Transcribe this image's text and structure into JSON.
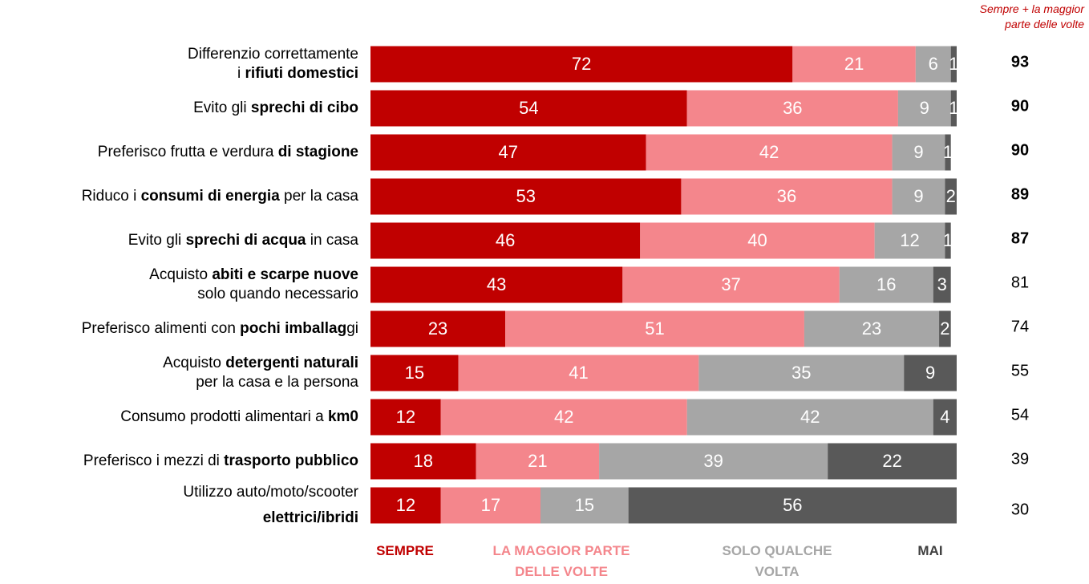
{
  "chart_data": {
    "type": "stacked-bar-horizontal",
    "categories": [
      [
        [
          {
            "text": "Differenzio correttamente",
            "bold": false
          }
        ],
        [
          {
            "text": "i ",
            "bold": false
          },
          {
            "text": "rifiuti domestici",
            "bold": true
          }
        ]
      ],
      [
        [
          {
            "text": "Evito gli ",
            "bold": false
          },
          {
            "text": "sprechi di cibo",
            "bold": true
          }
        ]
      ],
      [
        [
          {
            "text": "Preferisco frutta e verdura ",
            "bold": false
          },
          {
            "text": "di stagione",
            "bold": true
          }
        ]
      ],
      [
        [
          {
            "text": "Riduco i ",
            "bold": false
          },
          {
            "text": "consumi di energia",
            "bold": true
          },
          {
            "text": " per la casa",
            "bold": false
          }
        ]
      ],
      [
        [
          {
            "text": "Evito gli ",
            "bold": false
          },
          {
            "text": "sprechi di acqua",
            "bold": true
          },
          {
            "text": " in casa",
            "bold": false
          }
        ]
      ],
      [
        [
          {
            "text": "Acquisto ",
            "bold": false
          },
          {
            "text": "abiti e scarpe nuove",
            "bold": true
          }
        ],
        [
          {
            "text": "solo quando necessario",
            "bold": false
          }
        ]
      ],
      [
        [
          {
            "text": "Preferisco alimenti con ",
            "bold": false
          },
          {
            "text": "pochi imballag",
            "bold": true
          },
          {
            "text": "gi",
            "bold": false
          }
        ]
      ],
      [
        [
          {
            "text": "Acquisto ",
            "bold": false
          },
          {
            "text": "detergenti naturali",
            "bold": true
          }
        ],
        [
          {
            "text": "per la casa e la persona",
            "bold": false
          }
        ]
      ],
      [
        [
          {
            "text": "Consumo prodotti alimentari a ",
            "bold": false
          },
          {
            "text": "km0",
            "bold": true
          }
        ]
      ],
      [
        [
          {
            "text": "Preferisco i mezzi di ",
            "bold": false
          },
          {
            "text": "trasporto pubblico",
            "bold": true
          }
        ]
      ],
      [
        [
          {
            "text": "Utilizzo auto/moto/scooter",
            "bold": false
          }
        ],
        [
          {
            "text": "elettrici/ibridi",
            "bold": true
          }
        ]
      ]
    ],
    "series": [
      {
        "name": "SEMPRE",
        "color": "#c00000",
        "legend_color": "#c00000",
        "values": [
          72,
          54,
          47,
          53,
          46,
          43,
          23,
          15,
          12,
          18,
          12
        ]
      },
      {
        "name": "LA MAGGIOR PARTE DELLE VOLTE",
        "color": "#f4868c",
        "legend_color": "#f4868c",
        "values": [
          21,
          36,
          42,
          36,
          40,
          37,
          51,
          41,
          42,
          21,
          17
        ]
      },
      {
        "name": "SOLO QUALCHE VOLTA",
        "color": "#a6a6a6",
        "legend_color": "#a6a6a6",
        "values": [
          6,
          9,
          9,
          9,
          12,
          16,
          23,
          35,
          42,
          39,
          15
        ]
      },
      {
        "name": "MAI",
        "color": "#595959",
        "legend_color": "#404040",
        "values": [
          1,
          1,
          1,
          2,
          1,
          3,
          2,
          9,
          4,
          22,
          56
        ]
      }
    ],
    "totals": {
      "name": "Sempre + la maggior parte delle volte",
      "values": [
        93,
        90,
        90,
        89,
        87,
        81,
        74,
        55,
        54,
        39,
        30
      ],
      "bold": [
        true,
        true,
        true,
        true,
        true,
        false,
        false,
        false,
        false,
        false,
        false
      ]
    },
    "xlim": [
      0,
      100
    ]
  }
}
